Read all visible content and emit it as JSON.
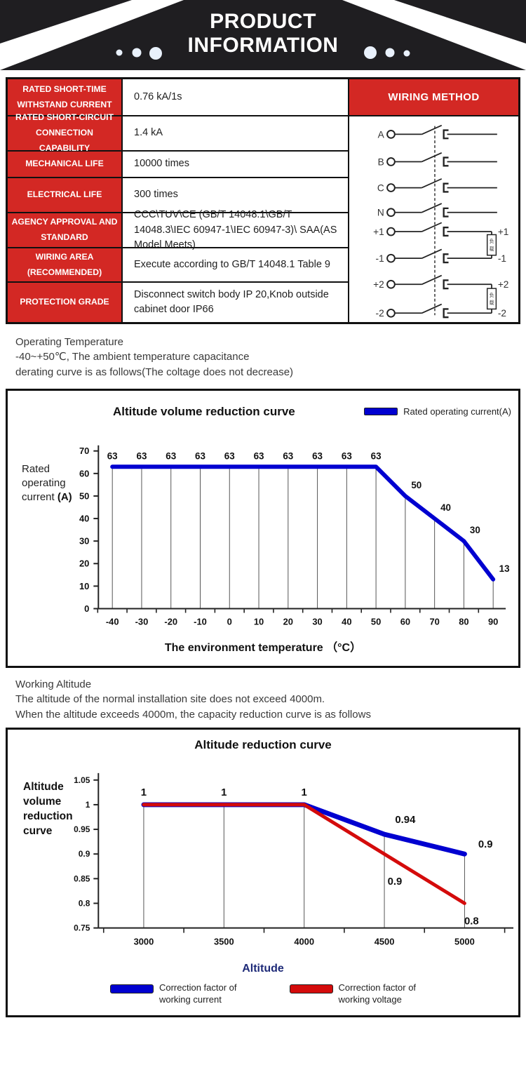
{
  "header": {
    "title_line1": "PRODUCT",
    "title_line2": "INFORMATION"
  },
  "spec_table": {
    "wiring_header": "WIRING METHOD",
    "rows": [
      {
        "label": "RATED SHORT-TIME WITHSTAND CURRENT",
        "value": "0.76 kA/1s"
      },
      {
        "label": "RATED SHORT-CIRCUIT CONNECTION CAPABILITY",
        "value": "1.4 kA"
      },
      {
        "label": "MECHANICAL LIFE",
        "value": "10000 times"
      },
      {
        "label": "ELECTRICAL LIFE",
        "value": "300 times"
      },
      {
        "label": "AGENCY APPROVAL AND STANDARD",
        "value": "CCC\\TUV\\CE (GB/T 14048.1\\GB/T 14048.3\\IEC 60947-1\\IEC 60947-3)\\ SAA(AS Model Meets)"
      },
      {
        "label": "WIRING AREA (RECOMMENDED)",
        "value": "Execute according to GB/T 14048.1 Table 9"
      },
      {
        "label": "PROTECTION GRADE",
        "value": "Disconnect switch body IP 20,Knob outside cabinet door IP66"
      }
    ]
  },
  "wiring": {
    "rows": [
      {
        "left": "A"
      },
      {
        "left": "B"
      },
      {
        "left": "C"
      },
      {
        "left": "N"
      },
      {
        "left": "+1",
        "right": "+1"
      },
      {
        "left": "-1",
        "right": "-1"
      },
      {
        "left": "+2",
        "right": "+2"
      },
      {
        "left": "-2",
        "right": "-2"
      }
    ],
    "load_label": "负载"
  },
  "notes_temperature": [
    "Operating Temperature",
    " -40~+50℃, The ambient temperature capacitance",
    "derating curve is as follows(The coltage does not decrease)"
  ],
  "notes_altitude": [
    "Working Altitude",
    "The altitude of the normal installation site does not exceed 4000m.",
    "When the altitude exceeds 4000m, the capacity reduction curve is as follows"
  ],
  "chart_data": [
    {
      "type": "line",
      "title": "Altitude volume reduction curve",
      "ylabel": "Rated operating current",
      "ylabel_unit": "(A)",
      "xlabel": "The environment temperature （°C）",
      "categories": [
        -40,
        -30,
        -20,
        -10,
        0,
        10,
        20,
        30,
        40,
        50,
        60,
        70,
        80,
        90
      ],
      "values": [
        63,
        63,
        63,
        63,
        63,
        63,
        63,
        63,
        63,
        63,
        50,
        40,
        30,
        13
      ],
      "yticks": [
        0,
        10,
        20,
        30,
        40,
        50,
        60,
        70
      ],
      "ylim": [
        0,
        70
      ],
      "grid": true,
      "line_color": "#0000d0",
      "legend": [
        {
          "label": "Rated operating current(A)",
          "color": "#0000d0"
        }
      ]
    },
    {
      "type": "line",
      "title": "Altitude reduction curve",
      "ylabel": "Altitude volume reduction curve",
      "xlabel": "Altitude",
      "categories": [
        3000,
        3500,
        4000,
        4500,
        5000
      ],
      "series": [
        {
          "name": "Correction factor of working current",
          "color": "#0000d0",
          "values": [
            1,
            1,
            1,
            0.94,
            0.9
          ]
        },
        {
          "name": "Correction factor of working voltage",
          "color": "#d40b0b",
          "values": [
            1,
            1,
            1,
            0.9,
            0.8
          ]
        }
      ],
      "yticks": [
        "1.05",
        "1",
        "0.95",
        "0.9",
        "0.85",
        "0.8",
        "0.75"
      ],
      "ylim": [
        0.75,
        1.05
      ],
      "grid": true,
      "legend": [
        {
          "line1": "Correction factor of",
          "line2": "working current",
          "color": "#0000d0"
        },
        {
          "line1": "Correction factor of",
          "line2": "working voltage",
          "color": "#d40b0b"
        }
      ]
    }
  ]
}
